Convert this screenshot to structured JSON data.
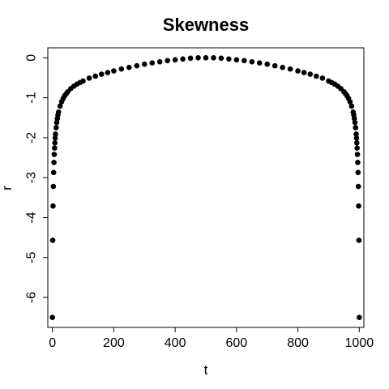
{
  "chart_data": {
    "type": "scatter",
    "title": "Skewness",
    "xlabel": "t",
    "ylabel": "r",
    "xlim": [
      -15,
      1015
    ],
    "ylim": [
      -6.75,
      0.25
    ],
    "xticks": [
      0,
      200,
      400,
      600,
      800,
      1000
    ],
    "yticks": [
      0,
      -1,
      -2,
      -3,
      -4,
      -5,
      -6
    ],
    "xtick_labels": [
      "0",
      "200",
      "400",
      "600",
      "800",
      "1000"
    ],
    "ytick_labels": [
      "0",
      "-1",
      "-2",
      "-3",
      "-4",
      "-5",
      "-6"
    ],
    "grid": false,
    "marker": "filled-circle",
    "point_color": "#000000",
    "series": [
      {
        "x": [
          0,
          1,
          2,
          3,
          4,
          5,
          6,
          7,
          8,
          9,
          10,
          12,
          14,
          16,
          18,
          20,
          25,
          30,
          35,
          40,
          45,
          50,
          60,
          70,
          80,
          90,
          100,
          120,
          140,
          160,
          180,
          200,
          225,
          250,
          275,
          300,
          325,
          350,
          375,
          400,
          425,
          450,
          475,
          500,
          525,
          550,
          575,
          600,
          625,
          650,
          675,
          700,
          725,
          750,
          775,
          800,
          820,
          840,
          860,
          880,
          900,
          910,
          920,
          930,
          940,
          950,
          955,
          960,
          965,
          970,
          975,
          980,
          982,
          984,
          986,
          988,
          990,
          991,
          992,
          993,
          994,
          995,
          996,
          997,
          998,
          999,
          1000
        ],
        "y": [
          -6.5,
          -4.57,
          -3.71,
          -3.22,
          -2.87,
          -2.62,
          -2.42,
          -2.26,
          -2.13,
          -2.01,
          -1.91,
          -1.75,
          -1.62,
          -1.52,
          -1.43,
          -1.36,
          -1.21,
          -1.1,
          -1.02,
          -0.95,
          -0.9,
          -0.85,
          -0.77,
          -0.71,
          -0.66,
          -0.62,
          -0.58,
          -0.51,
          -0.46,
          -0.41,
          -0.37,
          -0.33,
          -0.28,
          -0.24,
          -0.2,
          -0.16,
          -0.13,
          -0.1,
          -0.07,
          -0.05,
          -0.03,
          -0.01,
          0,
          0,
          0,
          -0.01,
          -0.03,
          -0.05,
          -0.07,
          -0.1,
          -0.13,
          -0.16,
          -0.2,
          -0.24,
          -0.28,
          -0.33,
          -0.37,
          -0.41,
          -0.46,
          -0.51,
          -0.58,
          -0.62,
          -0.66,
          -0.71,
          -0.77,
          -0.85,
          -0.9,
          -0.95,
          -1.02,
          -1.1,
          -1.21,
          -1.36,
          -1.43,
          -1.52,
          -1.62,
          -1.75,
          -1.91,
          -2.01,
          -2.13,
          -2.26,
          -2.42,
          -2.62,
          -2.87,
          -3.22,
          -3.71,
          -4.57,
          -6.5
        ]
      }
    ]
  }
}
